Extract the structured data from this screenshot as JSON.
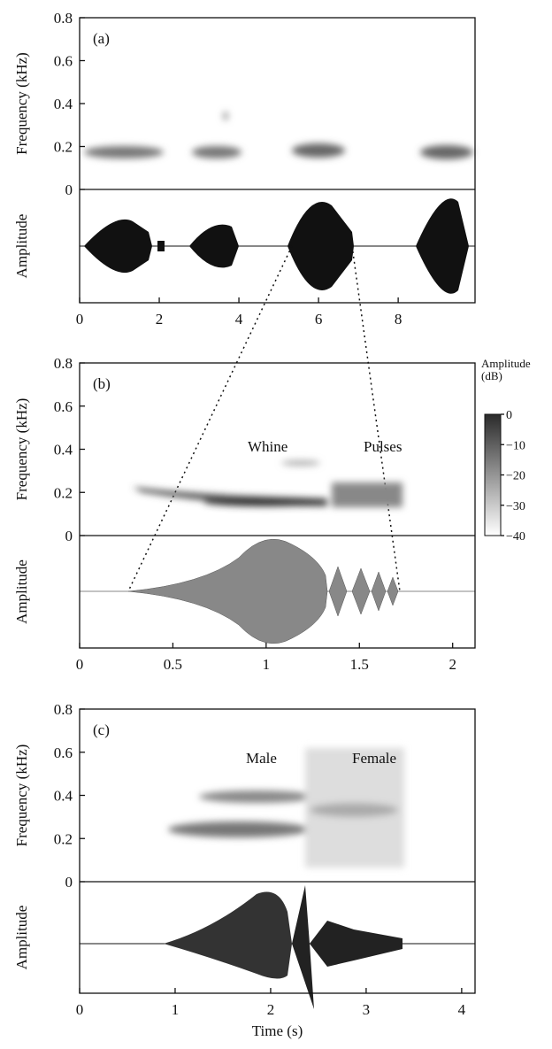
{
  "chart_data": [
    {
      "type": "spectrogram",
      "panel_label": "(a)",
      "ylabel": "Frequency (kHz)",
      "ylabel2": "Amplitude",
      "ylim": [
        0,
        0.8
      ],
      "yticks": [
        0,
        0.2,
        0.4,
        0.6,
        0.8
      ],
      "xlim": [
        0,
        9.93
      ],
      "xticks": [
        0,
        2,
        4,
        6,
        8
      ]
    },
    {
      "type": "spectrogram",
      "panel_label": "(b)",
      "ylabel": "Frequency (kHz)",
      "ylabel2": "Amplitude",
      "ylim": [
        0,
        0.8
      ],
      "yticks": [
        0,
        0.2,
        0.4,
        0.6,
        0.8
      ],
      "xlim": [
        0,
        2.12
      ],
      "xticks": [
        0,
        0.5,
        1,
        1.5,
        2
      ],
      "annotations": [
        "Whine",
        "Pulses"
      ],
      "colorbar": {
        "label": "Amplitude (dB)",
        "lim": [
          -40,
          0
        ],
        "ticks": [
          0,
          {
            "value": -10,
            "label": "−10"
          },
          {
            "value": -20,
            "label": "−20"
          },
          {
            "value": -30,
            "label": "−30"
          },
          {
            "value": -40,
            "label": "−40"
          }
        ]
      }
    },
    {
      "type": "spectrogram",
      "panel_label": "(c)",
      "ylabel": "Frequency (kHz)",
      "ylabel2": "Amplitude",
      "ylim": [
        0,
        0.8
      ],
      "yticks": [
        0,
        0.2,
        0.4,
        0.6,
        0.8
      ],
      "xlim": [
        0,
        4.14
      ],
      "xticks": [
        0,
        1,
        2,
        3,
        4
      ],
      "xlabel": "Time (s)",
      "annotations": [
        "Male",
        "Female"
      ]
    }
  ]
}
